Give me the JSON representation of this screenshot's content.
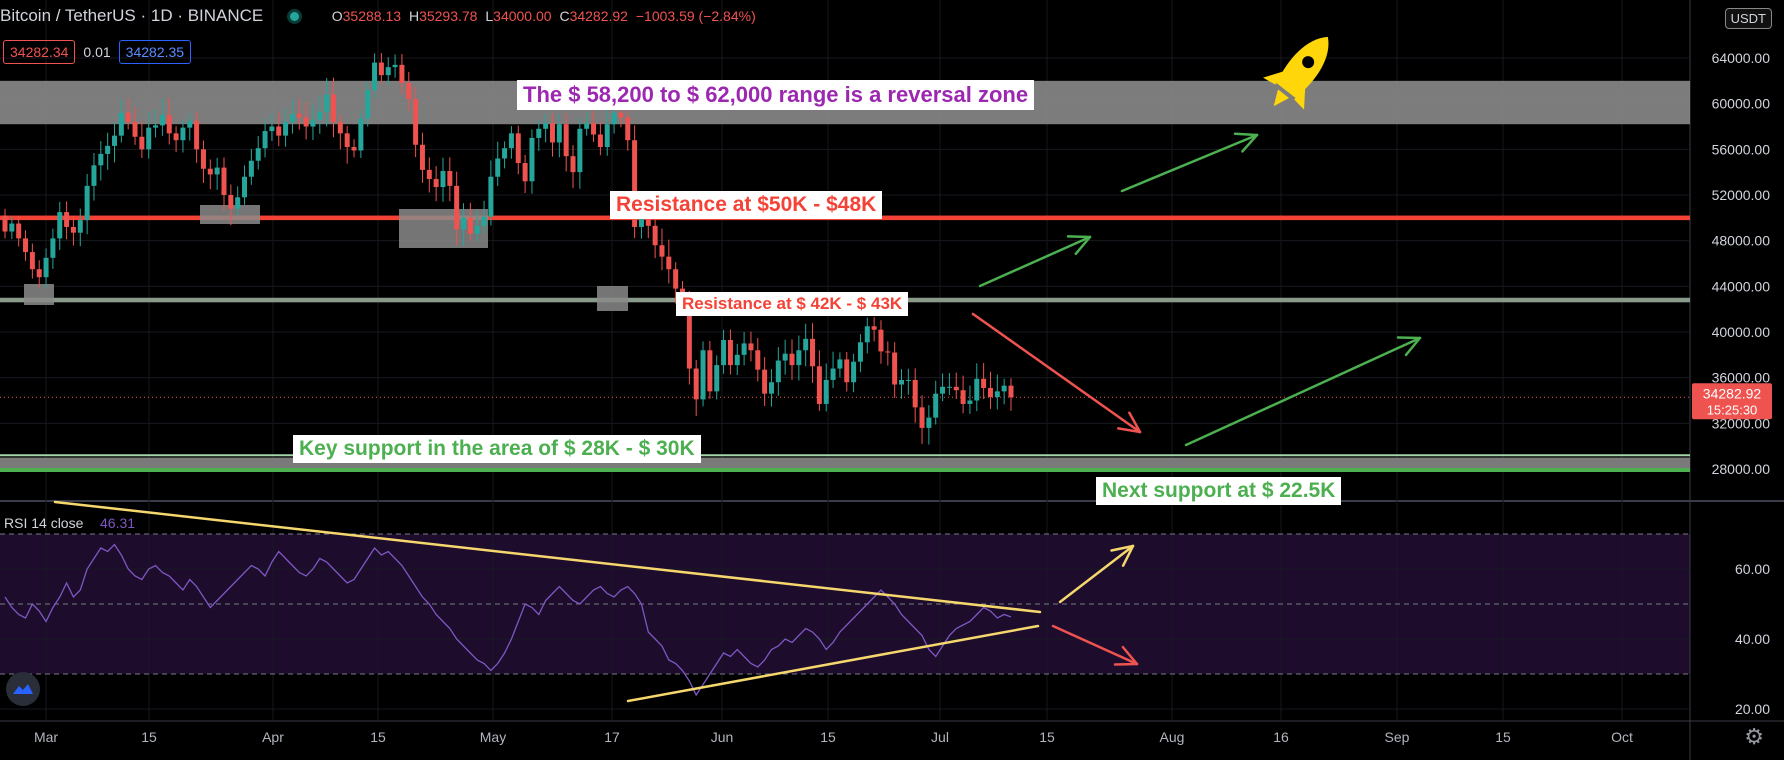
{
  "header": {
    "symbol": "Bitcoin / TetherUS · 1D · BINANCE",
    "o_label": "O",
    "o_value": "35288.13",
    "h_label": "H",
    "h_value": "35293.78",
    "l_label": "L",
    "l_value": "34000.00",
    "c_label": "C",
    "c_value": "34282.92",
    "change": "−1003.59 (−2.84%)"
  },
  "bidask": {
    "bid": "34282.34",
    "spread": "0.01",
    "ask": "34282.35"
  },
  "currency": "USDT",
  "rsi_label": "RSI 14 close",
  "rsi_value": "46.31",
  "price_label": {
    "price": "34282.92",
    "countdown": "15:25:30"
  },
  "annotations": {
    "reversal": "The $ 58,200 to $ 62,000 range is a reversal zone",
    "resistance_50": "Resistance at $50K - $48K",
    "resistance_42": "Resistance at $ 42K - $ 43K",
    "support_28": "Key support in the area of $ 28K - $ 30K",
    "support_22": "Next support at $ 22.5K"
  },
  "colors": {
    "up": "#26a69a",
    "down": "#ef5350",
    "rsi": "#7e57c2",
    "annotation_purple": "#9c27b0",
    "annotation_red": "#f44336",
    "annotation_green": "#4caf50"
  },
  "icons": {
    "rocket": "rocket-icon",
    "settings": "gear-icon",
    "logo": "tradingview-logo-icon"
  },
  "chart_data": [
    {
      "type": "candlestick",
      "title": "Bitcoin / TetherUS 1D BINANCE",
      "x_ticks": [
        "Mar",
        "15",
        "Apr",
        "15",
        "May",
        "17",
        "Jun",
        "15",
        "Jul",
        "15",
        "Aug",
        "16",
        "Sep",
        "15",
        "Oct"
      ],
      "y_ticks": [
        28000,
        32000,
        36000,
        40000,
        44000,
        48000,
        52000,
        56000,
        60000,
        64000
      ],
      "ylim": [
        26800,
        66600
      ],
      "zones": {
        "reversal": [
          58200,
          62000
        ],
        "resistance_upper": [
          49800,
          50200
        ],
        "resistance_lower": [
          42600,
          43000
        ],
        "support": [
          28000,
          30000
        ]
      },
      "closes": [
        48800,
        49500,
        48200,
        47000,
        45500,
        44800,
        46500,
        48200,
        50500,
        49200,
        48700,
        49800,
        52800,
        54600,
        55600,
        56300,
        57200,
        59200,
        58400,
        57100,
        56000,
        57900,
        58100,
        59000,
        57400,
        56800,
        57900,
        58500,
        56000,
        54300,
        53800,
        54400,
        52000,
        50800,
        51800,
        53600,
        55000,
        56100,
        57600,
        58000,
        57200,
        58400,
        59100,
        58800,
        58000,
        58600,
        59300,
        60800,
        58400,
        57400,
        56200,
        55900,
        58700,
        61200,
        63600,
        62500,
        63200,
        63400,
        61800,
        60400,
        56400,
        54200,
        53400,
        52700,
        54100,
        52800,
        49000,
        50000,
        48600,
        49300,
        50100,
        53600,
        55200,
        56100,
        57400,
        54800,
        53200,
        57000,
        57800,
        58300,
        56600,
        58200,
        55400,
        54000,
        57800,
        58300,
        57300,
        56200,
        58200,
        59200,
        58800,
        56800,
        49200,
        50200,
        49300,
        47600,
        46600,
        45500,
        43800,
        42900,
        36800,
        34100,
        38400,
        34800,
        37100,
        39300,
        37100,
        38000,
        39000,
        38400,
        36700,
        34600,
        35600,
        37500,
        38100,
        37100,
        38400,
        39400,
        37000,
        33700,
        35800,
        36800,
        37600,
        35600,
        37400,
        39100,
        40500,
        40200,
        38300,
        38200,
        35400,
        35800,
        35800,
        33400,
        31600,
        32500,
        34600,
        35200,
        35200,
        34900,
        33700,
        34000,
        35900,
        35100,
        34300,
        34800,
        35300,
        34282
      ]
    },
    {
      "type": "line",
      "title": "RSI 14 close",
      "y_ticks": [
        20,
        40,
        60
      ],
      "ylim": [
        17.5,
        74.5
      ],
      "bands": [
        30,
        50,
        70
      ],
      "values": [
        52,
        49,
        47,
        46,
        50,
        48,
        45,
        49,
        52,
        56,
        52,
        54,
        60,
        63,
        66,
        65,
        67,
        64,
        60,
        58,
        57,
        60,
        61,
        59,
        58,
        56,
        54,
        57,
        55,
        52,
        49,
        51,
        53,
        55,
        57,
        59,
        61,
        60,
        58,
        62,
        65,
        63,
        61,
        59,
        58,
        60,
        63,
        62,
        60,
        58,
        56,
        57,
        60,
        63,
        66,
        64,
        65,
        63,
        61,
        58,
        55,
        52,
        50,
        47,
        45,
        43,
        40,
        38,
        36,
        34,
        33,
        31,
        33,
        36,
        40,
        45,
        50,
        49,
        47,
        51,
        53,
        55,
        53,
        51,
        50,
        52,
        54,
        55,
        53,
        52,
        54,
        55,
        53,
        50,
        42,
        40,
        38,
        34,
        33,
        31,
        28,
        24,
        27,
        30,
        33,
        36,
        35,
        37,
        35,
        33,
        32,
        34,
        37,
        38,
        40,
        39,
        41,
        43,
        42,
        40,
        37,
        39,
        42,
        44,
        46,
        48,
        50,
        52,
        54,
        52,
        50,
        47,
        45,
        43,
        41,
        37,
        35,
        38,
        41,
        43,
        44,
        45,
        47,
        49,
        48,
        46,
        47,
        46.31
      ]
    }
  ]
}
